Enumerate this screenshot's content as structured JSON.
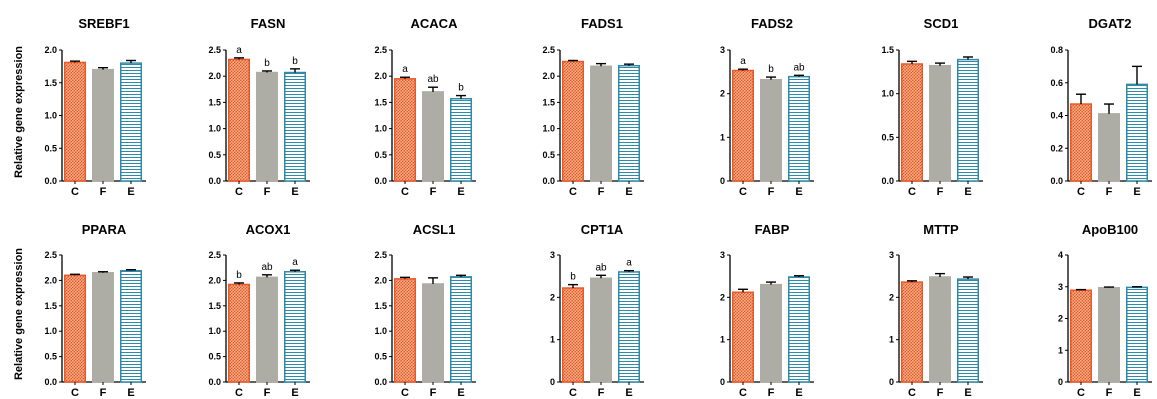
{
  "figure": {
    "ylabel": "Relative gene expression",
    "colors": {
      "C": "#e8592a",
      "F": "#adada5",
      "E": "#2f8aa8"
    }
  },
  "chart_data": [
    {
      "type": "bar",
      "title": "SREBF1",
      "categories": [
        "C",
        "F",
        "E"
      ],
      "values": [
        1.81,
        1.7,
        1.8
      ],
      "errors": [
        0.02,
        0.03,
        0.04
      ],
      "ylim": [
        0,
        2.0
      ],
      "yticks": [
        "0.0",
        "0.5",
        "1.0",
        "1.5",
        "2.0"
      ],
      "sig": [
        "",
        "",
        ""
      ]
    },
    {
      "type": "bar",
      "title": "FASN",
      "categories": [
        "C",
        "F",
        "E"
      ],
      "values": [
        2.32,
        2.07,
        2.07
      ],
      "errors": [
        0.03,
        0.03,
        0.07
      ],
      "ylim": [
        0,
        2.5
      ],
      "yticks": [
        "0.0",
        "0.5",
        "1.0",
        "1.5",
        "2.0",
        "2.5"
      ],
      "sig": [
        "a",
        "b",
        "b"
      ]
    },
    {
      "type": "bar",
      "title": "ACACA",
      "categories": [
        "C",
        "F",
        "E"
      ],
      "values": [
        1.95,
        1.7,
        1.57
      ],
      "errors": [
        0.03,
        0.09,
        0.06
      ],
      "ylim": [
        0,
        2.5
      ],
      "yticks": [
        "0.0",
        "0.5",
        "1.0",
        "1.5",
        "2.0",
        "2.5"
      ],
      "sig": [
        "a",
        "ab",
        "b"
      ]
    },
    {
      "type": "bar",
      "title": "FADS1",
      "categories": [
        "C",
        "F",
        "E"
      ],
      "values": [
        2.28,
        2.19,
        2.2
      ],
      "errors": [
        0.02,
        0.05,
        0.03
      ],
      "ylim": [
        0,
        2.5
      ],
      "yticks": [
        "0.0",
        "0.5",
        "1.0",
        "1.5",
        "2.0",
        "2.5"
      ],
      "sig": [
        "",
        "",
        ""
      ]
    },
    {
      "type": "bar",
      "title": "FADS2",
      "categories": [
        "C",
        "F",
        "E"
      ],
      "values": [
        2.53,
        2.32,
        2.39
      ],
      "errors": [
        0.03,
        0.06,
        0.03
      ],
      "ylim": [
        0,
        3
      ],
      "yticks": [
        "0",
        "1",
        "2",
        "3"
      ],
      "sig": [
        "a",
        "b",
        "ab"
      ]
    },
    {
      "type": "bar",
      "title": "SCD1",
      "categories": [
        "C",
        "F",
        "E"
      ],
      "values": [
        1.34,
        1.32,
        1.39
      ],
      "errors": [
        0.03,
        0.03,
        0.03
      ],
      "ylim": [
        0,
        1.5
      ],
      "yticks": [
        "0.0",
        "0.5",
        "1.0",
        "1.5"
      ],
      "sig": [
        "",
        "",
        ""
      ]
    },
    {
      "type": "bar",
      "title": "DGAT2",
      "categories": [
        "C",
        "F",
        "E"
      ],
      "values": [
        0.47,
        0.41,
        0.59
      ],
      "errors": [
        0.06,
        0.06,
        0.11
      ],
      "ylim": [
        0,
        0.8
      ],
      "yticks": [
        "0.0",
        "0.2",
        "0.4",
        "0.6",
        "0.8"
      ],
      "sig": [
        "",
        "",
        ""
      ]
    },
    {
      "type": "bar",
      "title": "PPARA",
      "categories": [
        "C",
        "F",
        "E"
      ],
      "values": [
        2.1,
        2.15,
        2.19
      ],
      "errors": [
        0.02,
        0.02,
        0.02
      ],
      "ylim": [
        0,
        2.5
      ],
      "yticks": [
        "0.0",
        "0.5",
        "1.0",
        "1.5",
        "2.0",
        "2.5"
      ],
      "sig": [
        "",
        "",
        ""
      ]
    },
    {
      "type": "bar",
      "title": "ACOX1",
      "categories": [
        "C",
        "F",
        "E"
      ],
      "values": [
        1.92,
        2.06,
        2.17
      ],
      "errors": [
        0.03,
        0.05,
        0.03
      ],
      "ylim": [
        0,
        2.5
      ],
      "yticks": [
        "0.0",
        "0.5",
        "1.0",
        "1.5",
        "2.0",
        "2.5"
      ],
      "sig": [
        "b",
        "ab",
        "a"
      ]
    },
    {
      "type": "bar",
      "title": "ACSL1",
      "categories": [
        "C",
        "F",
        "E"
      ],
      "values": [
        2.03,
        1.93,
        2.07
      ],
      "errors": [
        0.03,
        0.12,
        0.03
      ],
      "ylim": [
        0,
        2.5
      ],
      "yticks": [
        "0.0",
        "0.5",
        "1.0",
        "1.5",
        "2.0",
        "2.5"
      ],
      "sig": [
        "",
        "",
        ""
      ]
    },
    {
      "type": "bar",
      "title": "CPT1A",
      "categories": [
        "C",
        "F",
        "E"
      ],
      "values": [
        2.22,
        2.45,
        2.6
      ],
      "errors": [
        0.08,
        0.07,
        0.03
      ],
      "ylim": [
        0,
        3
      ],
      "yticks": [
        "0",
        "1",
        "2",
        "3"
      ],
      "sig": [
        "b",
        "ab",
        "a"
      ]
    },
    {
      "type": "bar",
      "title": "FABP",
      "categories": [
        "C",
        "F",
        "E"
      ],
      "values": [
        2.12,
        2.3,
        2.48
      ],
      "errors": [
        0.07,
        0.06,
        0.03
      ],
      "ylim": [
        0,
        3
      ],
      "yticks": [
        "0",
        "1",
        "2",
        "3"
      ],
      "sig": [
        "",
        "",
        ""
      ]
    },
    {
      "type": "bar",
      "title": "MTTP",
      "categories": [
        "C",
        "F",
        "E"
      ],
      "values": [
        2.36,
        2.48,
        2.43
      ],
      "errors": [
        0.03,
        0.08,
        0.05
      ],
      "ylim": [
        0,
        3
      ],
      "yticks": [
        "0",
        "1",
        "2",
        "3"
      ],
      "sig": [
        "",
        "",
        ""
      ]
    },
    {
      "type": "bar",
      "title": "ApoB100",
      "categories": [
        "C",
        "F",
        "E"
      ],
      "values": [
        2.89,
        2.97,
        2.98
      ],
      "errors": [
        0.02,
        0.02,
        0.02
      ],
      "ylim": [
        0,
        4
      ],
      "yticks": [
        "0",
        "1",
        "2",
        "3",
        "4"
      ],
      "sig": [
        "",
        "",
        ""
      ]
    }
  ]
}
